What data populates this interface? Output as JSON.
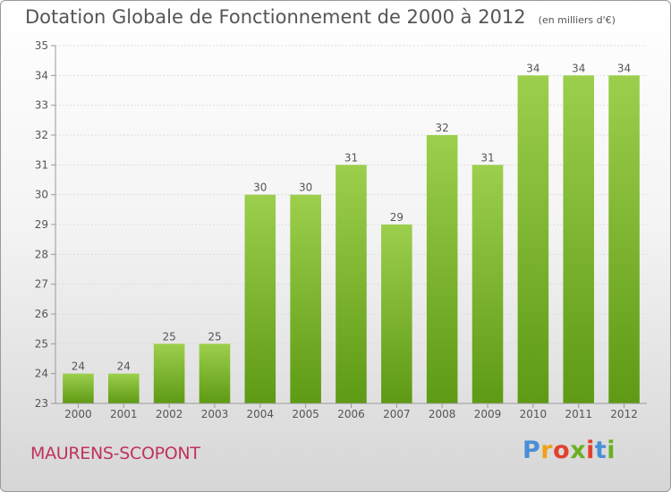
{
  "header": {
    "title": "Dotation Globale de Fonctionnement de 2000 à 2012",
    "units": "(en milliers d'€)"
  },
  "footer": {
    "commune": "MAURENS-SCOPONT",
    "logo": "Proxiti"
  },
  "colors": {
    "bar_top": "#9ccf4c",
    "bar_bottom": "#5e9a14",
    "text": "#555555",
    "commune": "#c0325b"
  },
  "chart_data": {
    "type": "bar",
    "title": "Dotation Globale de Fonctionnement de 2000 à 2012",
    "subtitle": "(en milliers d'€)",
    "categories": [
      "2000",
      "2001",
      "2002",
      "2003",
      "2004",
      "2005",
      "2006",
      "2007",
      "2008",
      "2009",
      "2010",
      "2011",
      "2012"
    ],
    "values": [
      24,
      24,
      25,
      25,
      30,
      30,
      31,
      29,
      32,
      31,
      34,
      34,
      34
    ],
    "ylim": [
      23,
      35
    ],
    "yticks": [
      23,
      24,
      25,
      26,
      27,
      28,
      29,
      30,
      31,
      32,
      33,
      34,
      35
    ],
    "grid": true,
    "data_labels": true
  }
}
